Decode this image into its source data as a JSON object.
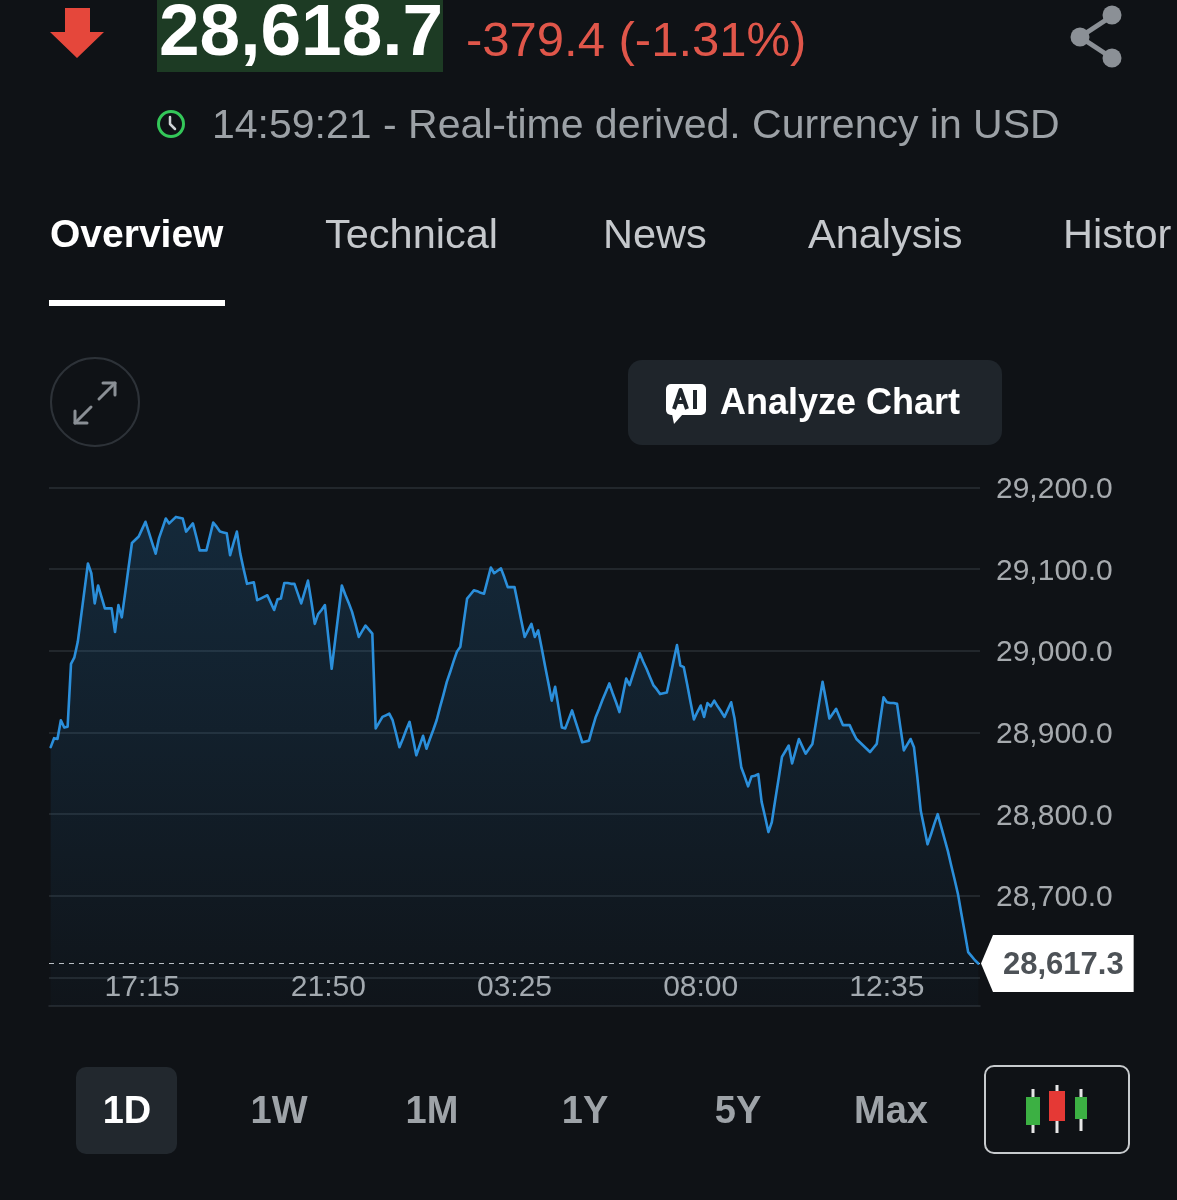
{
  "chart_data": {
    "type": "area",
    "title": "28,618.7",
    "subtitle": "-379.4 (-1.31%)",
    "annotations": [
      "14:59:21 - Real-time derived. Currency in USD",
      "Overview",
      "Technical",
      "News",
      "Analysis",
      "Histor",
      "Analyze Chart",
      "1D",
      "1W",
      "1M",
      "1Y",
      "5Y",
      "Max"
    ],
    "categories": [
      null,
      null,
      null,
      null,
      null,
      null,
      null,
      null,
      null,
      null,
      null,
      null,
      null,
      null,
      null,
      null,
      null,
      null,
      null,
      null,
      null,
      null,
      null,
      null,
      null,
      null,
      null,
      "17:15",
      null,
      null,
      null,
      null,
      null,
      null,
      null,
      null,
      null,
      null,
      null,
      null,
      null,
      null,
      null,
      null,
      null,
      null,
      null,
      null,
      null,
      null,
      null,
      null,
      null,
      null,
      null,
      null,
      null,
      null,
      null,
      null,
      null,
      null,
      null,
      null,
      null,
      null,
      null,
      null,
      null,
      null,
      null,
      null,
      null,
      null,
      null,
      null,
      null,
      null,
      null,
      null,
      null,
      null,
      "21:50",
      null,
      null,
      null,
      null,
      null,
      null,
      null,
      null,
      null,
      null,
      null,
      null,
      null,
      null,
      null,
      null,
      null,
      null,
      null,
      null,
      null,
      null,
      null,
      null,
      null,
      null,
      null,
      null,
      null,
      null,
      null,
      null,
      null,
      null,
      null,
      null,
      null,
      null,
      null,
      null,
      null,
      null,
      null,
      null,
      null,
      null,
      null,
      null,
      null,
      null,
      null,
      null,
      null,
      null,
      "03:25",
      null,
      null,
      null,
      null,
      null,
      null,
      null,
      null,
      null,
      null,
      null,
      null,
      null,
      null,
      null,
      null,
      null,
      null,
      null,
      null,
      null,
      null,
      null,
      null,
      null,
      null,
      null,
      null,
      null,
      null,
      null,
      null,
      null,
      null,
      null,
      null,
      null,
      null,
      null,
      null,
      null,
      null,
      null,
      null,
      null,
      null,
      null,
      null,
      null,
      null,
      null,
      null,
      null,
      null,
      "08:00",
      null,
      null,
      null,
      null,
      null,
      null,
      null,
      null,
      null,
      null,
      null,
      null,
      null,
      null,
      null,
      null,
      null,
      null,
      null,
      null,
      null,
      null,
      null,
      null,
      null,
      null,
      null,
      null,
      null,
      null,
      null,
      null,
      null,
      null,
      null,
      null,
      null,
      null,
      null,
      null,
      null,
      null,
      null,
      null,
      null,
      null,
      null,
      null,
      null,
      null,
      null,
      null,
      null,
      null,
      "12:35",
      null,
      null,
      null,
      null,
      null,
      null,
      null,
      null,
      null,
      null,
      null,
      null,
      null,
      null,
      null,
      null,
      null,
      null,
      null,
      null,
      null,
      null,
      null,
      null,
      null,
      null,
      null
    ],
    "values": [
      28882,
      28893,
      28892,
      28915,
      28906,
      28907,
      28984,
      28992,
      29011,
      29043,
      29075,
      29107,
      29095,
      29058,
      29080,
      29066,
      29052,
      29052,
      29052,
      29023,
      29056,
      29041,
      29071,
      29102,
      29132,
      29136,
      29140,
      29149,
      29158,
      29145,
      29132,
      29119,
      29138,
      29150,
      29162,
      29156,
      29160,
      29164,
      29163,
      29162,
      29146,
      29151,
      29156,
      29140,
      29123,
      29123,
      29123,
      29140,
      29157,
      29152,
      29146,
      29145,
      29144,
      29117,
      29132,
      29146,
      29119,
      29100,
      29082,
      29083,
      29084,
      29062,
      29064,
      29066,
      29068,
      29059,
      29050,
      29063,
      29064,
      29083,
      29083,
      29082,
      29082,
      29070,
      29058,
      29072,
      29086,
      29060,
      29033,
      29045,
      29050,
      29056,
      29017,
      28978,
      29012,
      29046,
      29080,
      29069,
      29059,
      29048,
      29033,
      29017,
      29024,
      29031,
      29026,
      29021,
      28905,
      28912,
      28919,
      28921,
      28923,
      28915,
      28899,
      28882,
      28892,
      28903,
      28913,
      28893,
      28872,
      28884,
      28896,
      28880,
      28892,
      28903,
      28915,
      28931,
      28946,
      28962,
      28974,
      28987,
      28999,
      29005,
      29035,
      29064,
      29069,
      29074,
      29073,
      29071,
      29070,
      29086,
      29102,
      29095,
      29098,
      29101,
      29090,
      29078,
      29078,
      29078,
      29058,
      29037,
      29017,
      29025,
      29033,
      29017,
      29025,
      29004,
      28982,
      28961,
      28939,
      28956,
      28931,
      28906,
      28905,
      28916,
      28927,
      28914,
      28901,
      28888,
      28889,
      28890,
      28905,
      28919,
      28929,
      28940,
      28950,
      28960,
      28948,
      28937,
      28925,
      28946,
      28966,
      28958,
      28971,
      28984,
      28997,
      28987,
      28978,
      28968,
      28958,
      28953,
      28947,
      28948,
      28949,
      28968,
      28988,
      29007,
      28982,
      28980,
      28959,
      28937,
      28916,
      28925,
      28933,
      28919,
      28936,
      28932,
      28939,
      28932,
      28926,
      28919,
      28928,
      28937,
      28917,
      28887,
      28857,
      28846,
      28834,
      28846,
      28847,
      28849,
      28815,
      28797,
      28778,
      28790,
      28817,
      28843,
      28870,
      28877,
      28884,
      28862,
      28877,
      28892,
      28883,
      28874,
      28880,
      28886,
      28911,
      28937,
      28962,
      28940,
      28917,
      28923,
      28929,
      28919,
      28909,
      28909,
      28909,
      28900,
      28892,
      28888,
      28884,
      28880,
      28876,
      28881,
      28886,
      28915,
      28943,
      28937,
      28936,
      28936,
      28935,
      28906,
      28878,
      28885,
      28892,
      28882,
      28845,
      28804,
      28784,
      28763,
      28775,
      28788,
      28800,
      28785,
      28770,
      28755,
      28737,
      28720,
      28702,
      28678,
      28655,
      28631,
      28626,
      28621,
      28617
    ],
    "color": "#2b8fdb",
    "ylim": [
      28565,
      29200
    ],
    "yticks": [
      {
        "value": 28600,
        "label": null
      },
      {
        "value": 28700,
        "label": "28,700.0"
      },
      {
        "value": 28800,
        "label": "28,800.0"
      },
      {
        "value": 28900,
        "label": "28,900.0"
      },
      {
        "value": 29000,
        "label": "29,000.0"
      },
      {
        "value": 29100,
        "label": "29,100.0"
      },
      {
        "value": 29200,
        "label": "29,200.0"
      }
    ],
    "grid": "y",
    "ref_lines": [
      {
        "axis": "y",
        "value": 28617.3,
        "label": "28,617.3",
        "color": "#b8bec4",
        "line_style": "dashed"
      }
    ]
  }
}
